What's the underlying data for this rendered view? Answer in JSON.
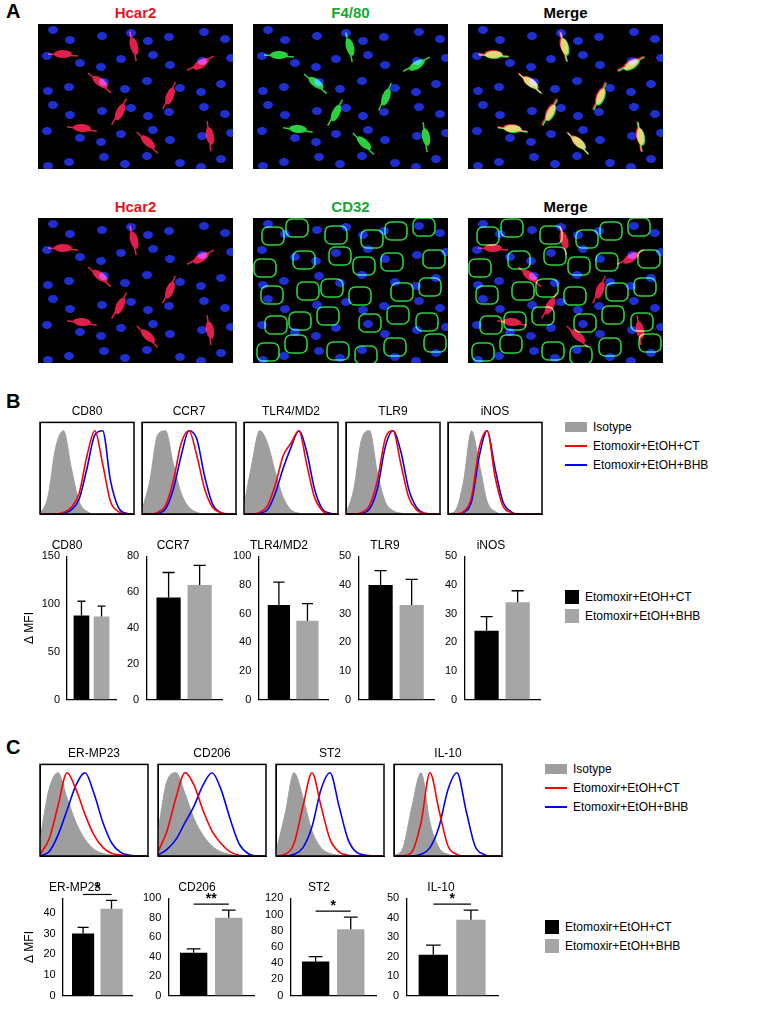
{
  "panel_labels": [
    "A",
    "B",
    "C"
  ],
  "images": {
    "rows": [
      {
        "channels": [
          {
            "label": "Hcar2",
            "color": "#e8141e"
          },
          {
            "label": "F4/80",
            "color": "#18a832"
          },
          {
            "label": "Merge",
            "color": "#000000"
          }
        ]
      },
      {
        "channels": [
          {
            "label": "Hcar2",
            "color": "#e8141e"
          },
          {
            "label": "CD32",
            "color": "#18a832"
          },
          {
            "label": "Merge",
            "color": "#000000"
          }
        ]
      }
    ]
  },
  "chart_data": [
    {
      "type": "line",
      "title": "CD80",
      "x": [
        0,
        1,
        2,
        3,
        4,
        5,
        6,
        7,
        8,
        9,
        10,
        11,
        12
      ],
      "xlim": [
        0,
        12
      ],
      "ylim": [
        0,
        110
      ],
      "tick_labels": false,
      "grid": false,
      "series": [
        {
          "name": "Isotype",
          "color": "#9e9e9e",
          "type": "area",
          "values": [
            0,
            20,
            80,
            100,
            55,
            15,
            3,
            0,
            0,
            0,
            0,
            0,
            0
          ]
        },
        {
          "name": "Etomoxir+EtOH+CT",
          "color": "#ff0000",
          "values": [
            0,
            0,
            0,
            2,
            8,
            25,
            70,
            100,
            60,
            15,
            3,
            0,
            0
          ]
        },
        {
          "name": "Etomoxir+EtOH+BHB",
          "color": "#0000ff",
          "values": [
            0,
            0,
            0,
            1,
            5,
            18,
            55,
            95,
            100,
            40,
            8,
            1,
            0
          ]
        }
      ]
    },
    {
      "type": "line",
      "title": "CCR7",
      "x": [
        0,
        1,
        2,
        3,
        4,
        5,
        6,
        7,
        8,
        9,
        10,
        11,
        12
      ],
      "xlim": [
        0,
        12
      ],
      "ylim": [
        0,
        110
      ],
      "tick_labels": false,
      "grid": false,
      "series": [
        {
          "name": "Isotype",
          "color": "#9e9e9e",
          "type": "area",
          "values": [
            5,
            40,
            95,
            100,
            60,
            25,
            8,
            2,
            0,
            0,
            0,
            0,
            0
          ]
        },
        {
          "name": "Etomoxir+EtOH+CT",
          "color": "#ff0000",
          "values": [
            0,
            0,
            2,
            10,
            40,
            85,
            100,
            70,
            30,
            8,
            2,
            0,
            0
          ]
        },
        {
          "name": "Etomoxir+EtOH+BHB",
          "color": "#0000ff",
          "values": [
            0,
            0,
            1,
            6,
            30,
            70,
            100,
            90,
            45,
            12,
            2,
            0,
            0
          ]
        }
      ]
    },
    {
      "type": "line",
      "title": "TLR4/MD2",
      "x": [
        0,
        1,
        2,
        3,
        4,
        5,
        6,
        7,
        8,
        9,
        10,
        11,
        12
      ],
      "xlim": [
        0,
        12
      ],
      "ylim": [
        0,
        110
      ],
      "tick_labels": false,
      "grid": false,
      "series": [
        {
          "name": "Isotype",
          "color": "#9e9e9e",
          "type": "area",
          "values": [
            10,
            60,
            100,
            85,
            50,
            20,
            5,
            1,
            0,
            0,
            0,
            0,
            0
          ]
        },
        {
          "name": "Etomoxir+EtOH+CT",
          "color": "#ff0000",
          "values": [
            0,
            0,
            2,
            10,
            35,
            70,
            85,
            100,
            60,
            20,
            4,
            0,
            0
          ]
        },
        {
          "name": "Etomoxir+EtOH+BHB",
          "color": "#0000ff",
          "values": [
            0,
            0,
            1,
            5,
            25,
            55,
            80,
            100,
            75,
            30,
            6,
            1,
            0
          ]
        }
      ]
    },
    {
      "type": "line",
      "title": "TLR9",
      "x": [
        0,
        1,
        2,
        3,
        4,
        5,
        6,
        7,
        8,
        9,
        10,
        11,
        12
      ],
      "xlim": [
        0,
        12
      ],
      "ylim": [
        0,
        110
      ],
      "tick_labels": false,
      "grid": false,
      "series": [
        {
          "name": "Isotype",
          "color": "#9e9e9e",
          "type": "area",
          "values": [
            0,
            30,
            90,
            100,
            50,
            15,
            4,
            1,
            0,
            0,
            0,
            0,
            0
          ]
        },
        {
          "name": "Etomoxir+EtOH+CT",
          "color": "#ff0000",
          "values": [
            0,
            0,
            2,
            10,
            40,
            90,
            100,
            60,
            20,
            5,
            1,
            0,
            0
          ]
        },
        {
          "name": "Etomoxir+EtOH+BHB",
          "color": "#0000ff",
          "values": [
            0,
            0,
            1,
            6,
            30,
            80,
            100,
            75,
            30,
            8,
            1,
            0,
            0
          ]
        }
      ]
    },
    {
      "type": "line",
      "title": "iNOS",
      "x": [
        0,
        1,
        2,
        3,
        4,
        5,
        6,
        7,
        8,
        9,
        10,
        11,
        12
      ],
      "xlim": [
        0,
        12
      ],
      "ylim": [
        0,
        110
      ],
      "tick_labels": false,
      "grid": false,
      "legend": "right",
      "series": [
        {
          "name": "Isotype",
          "color": "#9e9e9e",
          "type": "area",
          "values": [
            0,
            5,
            40,
            100,
            60,
            15,
            3,
            0,
            0,
            0,
            0,
            0,
            0
          ]
        },
        {
          "name": "Etomoxir+EtOH+CT",
          "color": "#ff0000",
          "values": [
            0,
            0,
            3,
            20,
            80,
            100,
            45,
            10,
            2,
            0,
            0,
            0,
            0
          ]
        },
        {
          "name": "Etomoxir+EtOH+BHB",
          "color": "#0000ff",
          "values": [
            0,
            0,
            2,
            15,
            70,
            100,
            55,
            15,
            3,
            0,
            0,
            0,
            0
          ]
        }
      ]
    },
    {
      "type": "bar",
      "title": "CD80",
      "ylabel": "Δ MFI",
      "categories": [
        null
      ],
      "ylim": [
        0,
        150
      ],
      "yticks": [
        0,
        50,
        100,
        150
      ],
      "grid": false,
      "series": [
        {
          "name": "Etomoxir+EtOH+CT",
          "color": "#000000",
          "values": [
            88
          ],
          "errors": [
            15
          ]
        },
        {
          "name": "Etomoxir+EtOH+BHB",
          "color": "#a6a6a6",
          "values": [
            87
          ],
          "errors": [
            11
          ]
        }
      ]
    },
    {
      "type": "bar",
      "title": "CCR7",
      "categories": [
        null
      ],
      "ylim": [
        0,
        80
      ],
      "yticks": [
        0,
        20,
        40,
        60,
        80
      ],
      "grid": false,
      "series": [
        {
          "name": "Etomoxir+EtOH+CT",
          "color": "#000000",
          "values": [
            57
          ],
          "errors": [
            14
          ]
        },
        {
          "name": "Etomoxir+EtOH+BHB",
          "color": "#a6a6a6",
          "values": [
            64
          ],
          "errors": [
            11
          ]
        }
      ]
    },
    {
      "type": "bar",
      "title": "TLR4/MD2",
      "categories": [
        null
      ],
      "ylim": [
        0,
        100
      ],
      "yticks": [
        0,
        20,
        40,
        60,
        80,
        100
      ],
      "grid": false,
      "series": [
        {
          "name": "Etomoxir+EtOH+CT",
          "color": "#000000",
          "values": [
            66
          ],
          "errors": [
            16
          ]
        },
        {
          "name": "Etomoxir+EtOH+BHB",
          "color": "#a6a6a6",
          "values": [
            55
          ],
          "errors": [
            12
          ]
        }
      ]
    },
    {
      "type": "bar",
      "title": "TLR9",
      "categories": [
        null
      ],
      "ylim": [
        0,
        50
      ],
      "yticks": [
        0,
        10,
        20,
        30,
        40,
        50
      ],
      "grid": false,
      "series": [
        {
          "name": "Etomoxir+EtOH+CT",
          "color": "#000000",
          "values": [
            40
          ],
          "errors": [
            5
          ]
        },
        {
          "name": "Etomoxir+EtOH+BHB",
          "color": "#a6a6a6",
          "values": [
            33
          ],
          "errors": [
            9
          ]
        }
      ]
    },
    {
      "type": "bar",
      "title": "iNOS",
      "categories": [
        null
      ],
      "ylim": [
        0,
        50
      ],
      "yticks": [
        0,
        10,
        20,
        30,
        40,
        50
      ],
      "grid": false,
      "legend": "right",
      "series": [
        {
          "name": "Etomoxir+EtOH+CT",
          "color": "#000000",
          "values": [
            24
          ],
          "errors": [
            5
          ]
        },
        {
          "name": "Etomoxir+EtOH+BHB",
          "color": "#a6a6a6",
          "values": [
            34
          ],
          "errors": [
            4
          ]
        }
      ]
    },
    {
      "type": "line",
      "title": "ER-MP23",
      "x": [
        0,
        1,
        2,
        3,
        4,
        5,
        6,
        7,
        8,
        9,
        10,
        11,
        12
      ],
      "xlim": [
        0,
        12
      ],
      "ylim": [
        0,
        110
      ],
      "tick_labels": false,
      "grid": false,
      "series": [
        {
          "name": "Isotype",
          "color": "#9e9e9e",
          "type": "area",
          "values": [
            20,
            80,
            100,
            70,
            40,
            20,
            8,
            3,
            1,
            0,
            0,
            0,
            0
          ]
        },
        {
          "name": "Etomoxir+EtOH+CT",
          "color": "#ff0000",
          "values": [
            2,
            20,
            60,
            100,
            80,
            50,
            25,
            10,
            3,
            1,
            0,
            0,
            0
          ]
        },
        {
          "name": "Etomoxir+EtOH+BHB",
          "color": "#0000ff",
          "values": [
            0,
            5,
            25,
            55,
            85,
            100,
            75,
            40,
            15,
            4,
            1,
            0,
            0
          ]
        }
      ]
    },
    {
      "type": "line",
      "title": "CD206",
      "x": [
        0,
        1,
        2,
        3,
        4,
        5,
        6,
        7,
        8,
        9,
        10,
        11,
        12
      ],
      "xlim": [
        0,
        12
      ],
      "ylim": [
        0,
        110
      ],
      "tick_labels": false,
      "grid": false,
      "series": [
        {
          "name": "Isotype",
          "color": "#9e9e9e",
          "type": "area",
          "values": [
            30,
            90,
            100,
            75,
            45,
            25,
            12,
            5,
            2,
            0,
            0,
            0,
            0
          ]
        },
        {
          "name": "Etomoxir+EtOH+CT",
          "color": "#ff0000",
          "values": [
            5,
            30,
            70,
            100,
            85,
            55,
            30,
            15,
            5,
            1,
            0,
            0,
            0
          ]
        },
        {
          "name": "Etomoxir+EtOH+BHB",
          "color": "#0000ff",
          "values": [
            1,
            8,
            20,
            40,
            60,
            85,
            100,
            80,
            45,
            15,
            3,
            0,
            0
          ]
        }
      ]
    },
    {
      "type": "line",
      "title": "ST2",
      "x": [
        0,
        1,
        2,
        3,
        4,
        5,
        6,
        7,
        8,
        9,
        10,
        11,
        12
      ],
      "xlim": [
        0,
        12
      ],
      "ylim": [
        0,
        110
      ],
      "tick_labels": false,
      "grid": false,
      "series": [
        {
          "name": "Isotype",
          "color": "#9e9e9e",
          "type": "area",
          "values": [
            5,
            50,
            100,
            70,
            30,
            10,
            3,
            1,
            0,
            0,
            0,
            0,
            0
          ]
        },
        {
          "name": "Etomoxir+EtOH+CT",
          "color": "#ff0000",
          "values": [
            0,
            2,
            15,
            60,
            100,
            60,
            20,
            5,
            1,
            0,
            0,
            0,
            0
          ]
        },
        {
          "name": "Etomoxir+EtOH+BHB",
          "color": "#0000ff",
          "values": [
            0,
            0,
            2,
            10,
            35,
            80,
            100,
            60,
            20,
            4,
            1,
            0,
            0
          ]
        }
      ]
    },
    {
      "type": "line",
      "title": "IL-10",
      "x": [
        0,
        1,
        2,
        3,
        4,
        5,
        6,
        7,
        8,
        9,
        10,
        11,
        12
      ],
      "xlim": [
        0,
        12
      ],
      "ylim": [
        0,
        110
      ],
      "tick_labels": false,
      "grid": false,
      "legend": "right",
      "series": [
        {
          "name": "Isotype",
          "color": "#9e9e9e",
          "type": "area",
          "values": [
            0,
            10,
            60,
            100,
            40,
            10,
            2,
            0,
            0,
            0,
            0,
            0,
            0
          ]
        },
        {
          "name": "Etomoxir+EtOH+CT",
          "color": "#ff0000",
          "values": [
            0,
            0,
            5,
            40,
            100,
            55,
            12,
            2,
            0,
            0,
            0,
            0,
            0
          ]
        },
        {
          "name": "Etomoxir+EtOH+BHB",
          "color": "#0000ff",
          "values": [
            0,
            0,
            0,
            2,
            10,
            35,
            80,
            100,
            55,
            12,
            2,
            0,
            0
          ]
        }
      ]
    },
    {
      "type": "bar",
      "title": "ER-MP23",
      "ylabel": "Δ MFI",
      "categories": [
        null
      ],
      "ylim": [
        0,
        47
      ],
      "yticks": [
        0,
        10,
        20,
        30,
        40
      ],
      "grid": false,
      "annotation": "*",
      "series": [
        {
          "name": "Etomoxir+EtOH+CT",
          "color": "#000000",
          "values": [
            30
          ],
          "errors": [
            3
          ]
        },
        {
          "name": "Etomoxir+EtOH+BHB",
          "color": "#a6a6a6",
          "values": [
            42
          ],
          "errors": [
            4
          ]
        }
      ]
    },
    {
      "type": "bar",
      "title": "CD206",
      "categories": [
        null
      ],
      "ylim": [
        0,
        100
      ],
      "yticks": [
        0,
        20,
        40,
        60,
        80,
        100
      ],
      "grid": false,
      "annotation": "**",
      "series": [
        {
          "name": "Etomoxir+EtOH+CT",
          "color": "#000000",
          "values": [
            44
          ],
          "errors": [
            4
          ]
        },
        {
          "name": "Etomoxir+EtOH+BHB",
          "color": "#a6a6a6",
          "values": [
            80
          ],
          "errors": [
            8
          ]
        }
      ]
    },
    {
      "type": "bar",
      "title": "ST2",
      "categories": [
        null
      ],
      "ylim": [
        0,
        120
      ],
      "yticks": [
        0,
        20,
        40,
        60,
        80,
        100,
        120
      ],
      "grid": false,
      "annotation": "*",
      "series": [
        {
          "name": "Etomoxir+EtOH+CT",
          "color": "#000000",
          "values": [
            42
          ],
          "errors": [
            6
          ]
        },
        {
          "name": "Etomoxir+EtOH+BHB",
          "color": "#a6a6a6",
          "values": [
            82
          ],
          "errors": [
            15
          ]
        }
      ]
    },
    {
      "type": "bar",
      "title": "IL-10",
      "categories": [
        null
      ],
      "ylim": [
        0,
        50
      ],
      "yticks": [
        0,
        10,
        20,
        30,
        40,
        50
      ],
      "grid": false,
      "annotation": "*",
      "legend": "right",
      "series": [
        {
          "name": "Etomoxir+EtOH+CT",
          "color": "#000000",
          "values": [
            21
          ],
          "errors": [
            5
          ]
        },
        {
          "name": "Etomoxir+EtOH+BHB",
          "color": "#a6a6a6",
          "values": [
            39
          ],
          "errors": [
            5
          ]
        }
      ]
    }
  ]
}
